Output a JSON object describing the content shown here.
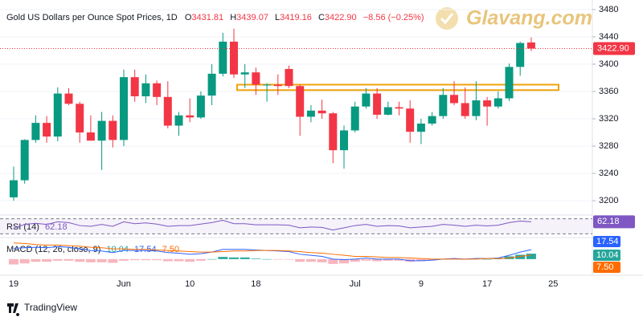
{
  "chart_data": {
    "type": "candlestick",
    "title": "Gold US Dollars per Ounce Spot Prices, 1D",
    "ohlc_legend": {
      "labels": [
        "O",
        "H",
        "L",
        "C"
      ],
      "values": [
        "3431.81",
        "3439.07",
        "3419.16",
        "3422.90"
      ],
      "change": "−8.56 (−0.25%)"
    },
    "categories": [
      "19",
      null,
      null,
      null,
      null,
      null,
      null,
      null,
      null,
      null,
      "Jun",
      null,
      null,
      null,
      null,
      null,
      "10",
      null,
      null,
      null,
      null,
      null,
      "18",
      null,
      null,
      null,
      null,
      null,
      null,
      null,
      null,
      "Jul",
      null,
      null,
      null,
      null,
      null,
      "9",
      null,
      null,
      null,
      null,
      null,
      "17",
      null,
      null,
      null,
      null,
      null,
      "25"
    ],
    "open": [
      3205,
      3230,
      3289,
      3314,
      3294,
      3357,
      3342,
      3300,
      3288,
      3317,
      3289,
      3381,
      3353,
      3372,
      3352,
      3310,
      3325,
      3322,
      3354,
      3386,
      3433,
      3385,
      3388,
      3370,
      3370,
      3393,
      3368,
      3323,
      3332,
      3328,
      3274,
      3303,
      3338,
      3357,
      3326,
      3337,
      3335,
      3301,
      3313,
      3324,
      3355,
      3343,
      3324,
      3347,
      3338,
      3350,
      3396,
      3431.81,
      null,
      null
    ],
    "high": [
      3250,
      3290,
      3325,
      3324,
      3366,
      3365,
      3345,
      3325,
      3330,
      3325,
      3392,
      3392,
      3385,
      3376,
      3375,
      3330,
      3350,
      3360,
      3400,
      3446,
      3452,
      3400,
      3395,
      3372,
      3385,
      3398,
      3370,
      3340,
      3348,
      3330,
      3310,
      3345,
      3365,
      3365,
      3345,
      3345,
      3347,
      3320,
      3330,
      3365,
      3375,
      3366,
      3375,
      3352,
      3360,
      3401,
      3433,
      3439.07,
      null,
      null
    ],
    "low": [
      3200,
      3225,
      3285,
      3285,
      3287,
      3340,
      3285,
      3288,
      3245,
      3278,
      3280,
      3345,
      3343,
      3340,
      3306,
      3295,
      3315,
      3320,
      3340,
      3382,
      3380,
      3365,
      3355,
      3345,
      3355,
      3365,
      3295,
      3315,
      3320,
      3255,
      3247,
      3300,
      3335,
      3320,
      3325,
      3325,
      3285,
      3283,
      3310,
      3320,
      3340,
      3320,
      3318,
      3310,
      3335,
      3346,
      3383,
      3419.16,
      null,
      null
    ],
    "close": [
      3230,
      3289,
      3314,
      3294,
      3357,
      3342,
      3300,
      3288,
      3317,
      3289,
      3381,
      3353,
      3372,
      3352,
      3310,
      3325,
      3322,
      3354,
      3386,
      3433,
      3385,
      3388,
      3370,
      3370,
      3368,
      3368,
      3323,
      3332,
      3328,
      3274,
      3303,
      3338,
      3357,
      3326,
      3337,
      3335,
      3301,
      3313,
      3324,
      3355,
      3343,
      3324,
      3347,
      3338,
      3350,
      3396,
      3431,
      3422.9,
      null,
      null
    ],
    "up_color": "#089981",
    "down_color": "#f23645",
    "ylim": [
      3179,
      3494
    ],
    "yticks": [
      3200,
      3240,
      3280,
      3320,
      3360,
      3400,
      3440,
      3480
    ],
    "last_price": {
      "value": 3422.9,
      "label": "3422.90"
    },
    "zone": {
      "from": 3362,
      "to": 3370,
      "color": "#f0a30a"
    },
    "rsi": {
      "title": "RSI (14)",
      "color": "#7e57c2",
      "ylim": [
        20,
        80
      ],
      "levels": [
        70,
        30
      ],
      "values": [
        45,
        55,
        58,
        55,
        62,
        60,
        52,
        50,
        55,
        50,
        62,
        57,
        59,
        56,
        50,
        52,
        52,
        56,
        60,
        66,
        57,
        57,
        54,
        54,
        54,
        53,
        46,
        48,
        47,
        40,
        46,
        52,
        55,
        50,
        52,
        51,
        46,
        48,
        50,
        55,
        53,
        50,
        53,
        51,
        53,
        60,
        64,
        62.18,
        null,
        null
      ]
    },
    "macd": {
      "title": "MACD (12, 26, close, 9)",
      "ylim": [
        -30,
        40
      ],
      "histogram": {
        "pos_color": "#26a69a",
        "neg_color": "#f7b6bd",
        "values": [
          -10,
          -8,
          -5,
          -5,
          -3,
          -3,
          -5,
          -6,
          -6,
          -7,
          -3,
          -2,
          -2,
          -2,
          -4,
          -4,
          -5,
          -3,
          0,
          4,
          3,
          3,
          1,
          0,
          -1,
          -1,
          -5,
          -5,
          -6,
          -9,
          -8,
          -5,
          -3,
          -4,
          -3,
          -3,
          -5,
          -4,
          -2,
          0,
          1,
          0,
          1,
          0,
          1,
          5,
          8,
          10.04,
          null,
          null
        ]
      },
      "macd_line": {
        "color": "#2962ff",
        "values": [
          20,
          21,
          22,
          21,
          23,
          22,
          19,
          16,
          15,
          12,
          16,
          16,
          16,
          15,
          12,
          11,
          9,
          10,
          13,
          18,
          18,
          18,
          17,
          16,
          15,
          14,
          9,
          7,
          5,
          0,
          -1,
          0,
          2,
          0,
          0,
          0,
          -3,
          -3,
          -2,
          0,
          1,
          0,
          1,
          1,
          2,
          7,
          13,
          17.54,
          null,
          null
        ]
      },
      "signal_line": {
        "color": "#ff6d00",
        "last_label": "7.50",
        "values": [
          30,
          29,
          27,
          26,
          26,
          25,
          24,
          22,
          21,
          19,
          19,
          18,
          18,
          17,
          16,
          15,
          14,
          13,
          13,
          14,
          15,
          15,
          16,
          16,
          16,
          15,
          14,
          12,
          11,
          9,
          7,
          5,
          5,
          4,
          3,
          3,
          2,
          1,
          0,
          0,
          0,
          0,
          0,
          1,
          1,
          2,
          5,
          7.5,
          null,
          null
        ]
      }
    },
    "watermark": "Glavang.com",
    "branding": "TradingView"
  }
}
